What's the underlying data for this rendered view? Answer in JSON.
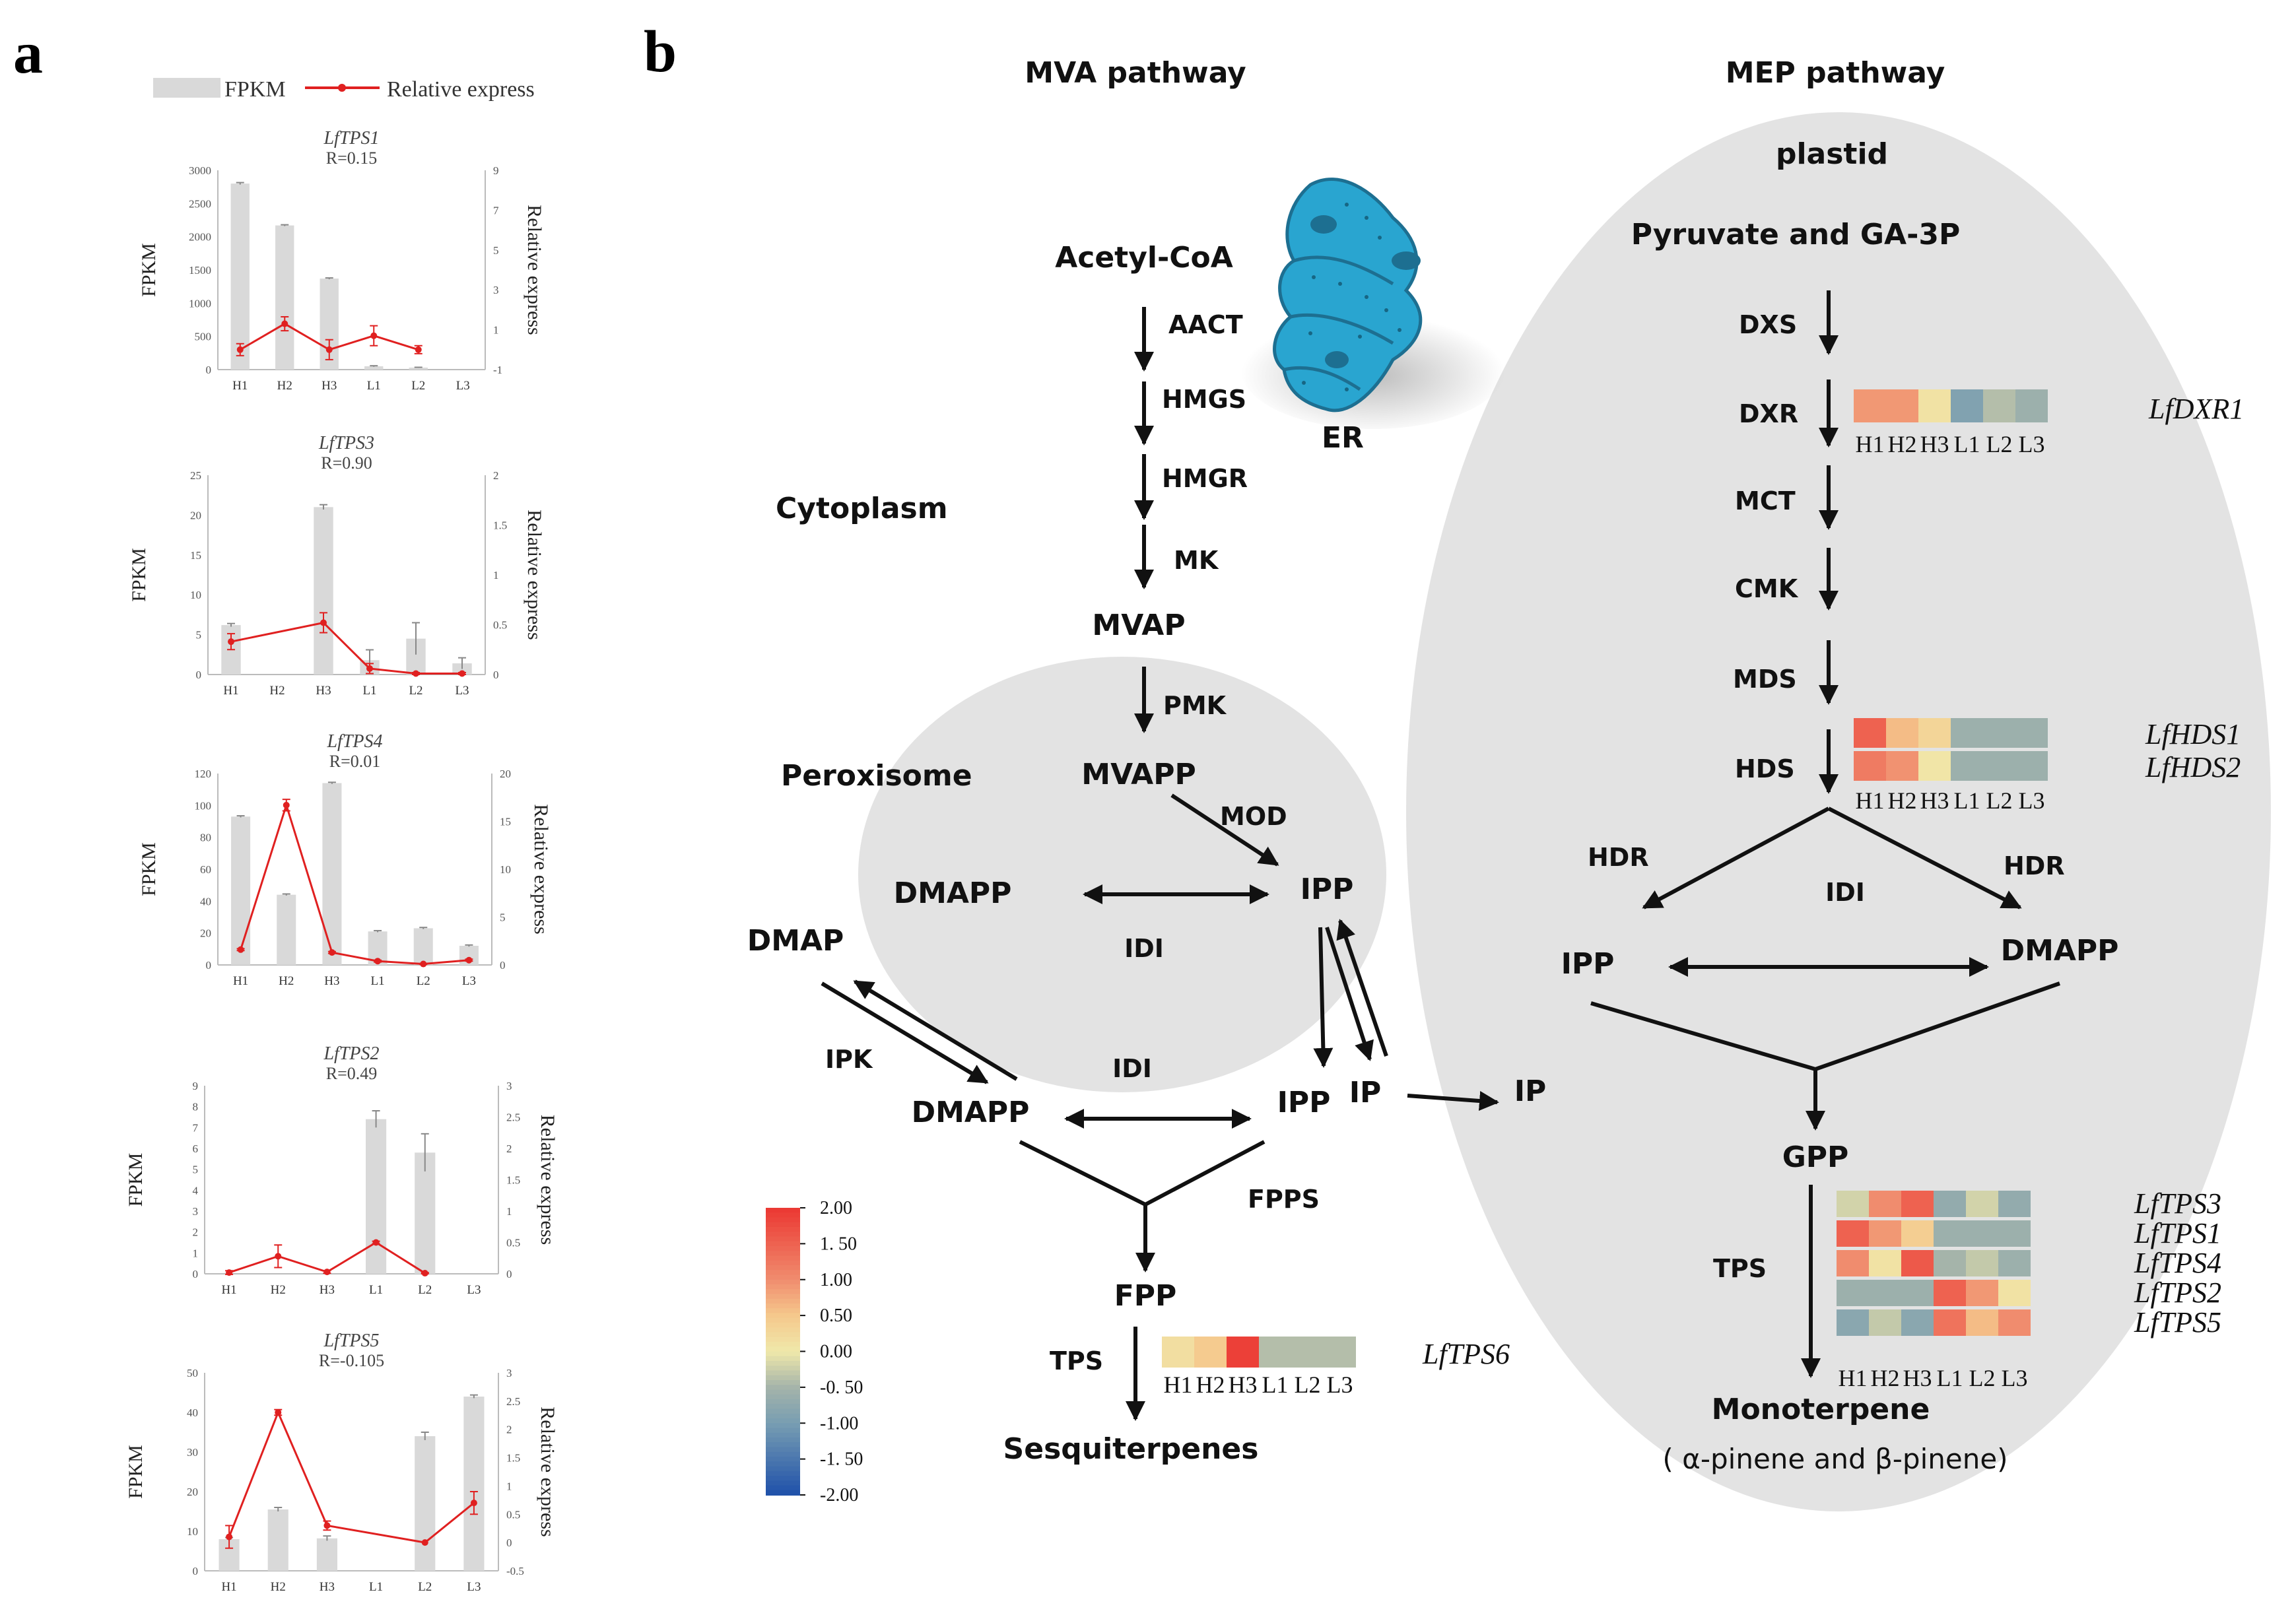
{
  "panel_a": {
    "label": "a",
    "legend": {
      "bar_label": "FPKM",
      "line_label": "Relative express"
    },
    "y_left_label": "FPKM",
    "y_right_label": "Relative express",
    "colors": {
      "bar": "#d9d9d9",
      "line": "#e02020"
    }
  },
  "chart_data": [
    {
      "type": "bar",
      "title": "LfTPS1",
      "subtitle": "R=0.15",
      "categories": [
        "H1",
        "H2",
        "H3",
        "L1",
        "L2",
        "L3"
      ],
      "series": [
        {
          "name": "FPKM",
          "axis": "left",
          "values": [
            2800,
            2170,
            1370,
            50,
            30,
            0
          ],
          "errors": [
            15,
            10,
            10,
            8,
            5,
            0
          ]
        },
        {
          "name": "Relative express",
          "axis": "right",
          "type": "line",
          "values": [
            0,
            1.3,
            0,
            0.7,
            0,
            null
          ],
          "errors": [
            0.3,
            0.35,
            0.5,
            0.5,
            0.2,
            null
          ]
        }
      ],
      "y_left": {
        "min": 0,
        "max": 3000,
        "ticks": [
          0,
          500,
          1000,
          1500,
          2000,
          2500,
          3000
        ]
      },
      "y_right": {
        "min": -1,
        "max": 9,
        "ticks": [
          -1,
          1,
          3,
          5,
          7,
          9
        ]
      }
    },
    {
      "type": "bar",
      "title": "LfTPS3",
      "subtitle": "R=0.90",
      "categories": [
        "H1",
        "H2",
        "H3",
        "L1",
        "L2",
        "L3"
      ],
      "series": [
        {
          "name": "FPKM",
          "axis": "left",
          "values": [
            6.2,
            0,
            21,
            1.8,
            4.5,
            1.4
          ],
          "errors": [
            0.2,
            0,
            0.3,
            1.3,
            2,
            0.7
          ]
        },
        {
          "name": "Relative express",
          "axis": "right",
          "type": "line",
          "values": [
            0.33,
            null,
            0.52,
            0.06,
            0.01,
            0.01
          ],
          "errors": [
            0.08,
            null,
            0.1,
            0.05,
            0.01,
            0.01
          ]
        }
      ],
      "y_left": {
        "min": 0,
        "max": 25,
        "ticks": [
          0,
          5,
          10,
          15,
          20,
          25
        ]
      },
      "y_right": {
        "min": 0,
        "max": 2,
        "ticks": [
          0,
          0.5,
          1,
          1.5,
          2
        ]
      }
    },
    {
      "type": "bar",
      "title": "LfTPS4",
      "subtitle": "R=0.01",
      "categories": [
        "H1",
        "H2",
        "H3",
        "L1",
        "L2",
        "L3"
      ],
      "series": [
        {
          "name": "FPKM",
          "axis": "left",
          "values": [
            93,
            44,
            114,
            21,
            23,
            12
          ],
          "errors": [
            0.5,
            0.5,
            0.5,
            0.5,
            0.5,
            0.5
          ]
        },
        {
          "name": "Relative express",
          "axis": "right",
          "type": "line",
          "values": [
            1.6,
            16.7,
            1.3,
            0.4,
            0.1,
            0.5
          ],
          "errors": [
            0.1,
            0.6,
            0.1,
            0.1,
            0.05,
            0.1
          ]
        }
      ],
      "y_left": {
        "min": 0,
        "max": 120,
        "ticks": [
          0,
          20,
          40,
          60,
          80,
          100,
          120
        ]
      },
      "y_right": {
        "min": 0,
        "max": 20,
        "ticks": [
          0,
          5,
          10,
          15,
          20
        ]
      }
    },
    {
      "type": "bar",
      "title": "LfTPS2",
      "subtitle": "R=0.49",
      "categories": [
        "H1",
        "H2",
        "H3",
        "L1",
        "L2",
        "L3"
      ],
      "series": [
        {
          "name": "FPKM",
          "axis": "left",
          "values": [
            0,
            0,
            0,
            7.4,
            5.8,
            0
          ],
          "errors": [
            0,
            0,
            0,
            0.4,
            0.9,
            0
          ]
        },
        {
          "name": "Relative express",
          "axis": "right",
          "type": "line",
          "values": [
            0.02,
            0.28,
            0.03,
            0.5,
            0.01,
            null
          ],
          "errors": [
            0.03,
            0.18,
            0.02,
            0.02,
            0.01,
            null
          ]
        }
      ],
      "y_left": {
        "min": 0,
        "max": 9,
        "ticks": [
          0,
          1,
          2,
          3,
          4,
          5,
          6,
          7,
          8,
          9
        ]
      },
      "y_right": {
        "min": 0,
        "max": 3,
        "ticks": [
          0,
          0.5,
          1,
          1.5,
          2,
          2.5,
          3
        ]
      }
    },
    {
      "type": "bar",
      "title": "LfTPS5",
      "subtitle": "R=-0.105",
      "categories": [
        "H1",
        "H2",
        "H3",
        "L1",
        "L2",
        "L3"
      ],
      "series": [
        {
          "name": "FPKM",
          "axis": "left",
          "values": [
            8,
            15.5,
            8.2,
            0,
            34,
            44
          ],
          "errors": [
            0.4,
            0.5,
            0.6,
            0,
            1,
            0.4
          ]
        },
        {
          "name": "Relative express",
          "axis": "right",
          "type": "line",
          "values": [
            0.1,
            2.3,
            0.3,
            null,
            0,
            0.7
          ],
          "errors": [
            0.2,
            0.05,
            0.08,
            null,
            0,
            0.2
          ]
        }
      ],
      "y_left": {
        "min": 0,
        "max": 50,
        "ticks": [
          0,
          10,
          20,
          30,
          40,
          50
        ]
      },
      "y_right": {
        "min": -0.5,
        "max": 3,
        "ticks": [
          -0.5,
          0,
          0.5,
          1,
          1.5,
          2,
          2.5,
          3
        ]
      }
    }
  ],
  "panel_b": {
    "label": "b",
    "headers": {
      "mva": "MVA pathway",
      "mep": "MEP pathway"
    },
    "compartments": {
      "plastid": "plastid",
      "cytoplasm": "Cytoplasm",
      "peroxisome": "Peroxisome",
      "er": "ER"
    },
    "mva_nodes": {
      "acetyl": "Acetyl-CoA",
      "mvap": "MVAP",
      "mvapp": "MVAPP",
      "dmapp_perox": "DMAPP",
      "ipp_perox": "IPP",
      "dmap": "DMAP",
      "dmapp_cyto": "DMAPP",
      "ipp_cyto": "IPP",
      "ip_cyto": "IP",
      "ip_out": "IP",
      "fpp": "FPP",
      "sesq": "Sesquiterpenes"
    },
    "mva_enzymes": {
      "aact": "AACT",
      "hmgs": "HMGS",
      "hmgr": "HMGR",
      "mk": "MK",
      "pmk": "PMK",
      "mod": "MOD",
      "idi_perox": "IDI",
      "ipk": "IPK",
      "idi_cyto": "IDI",
      "fpps": "FPPS",
      "tps": "TPS"
    },
    "mep_nodes": {
      "pyruvate": "Pyruvate and GA-3P",
      "ipp": "IPP",
      "dmapp": "DMAPP",
      "gpp": "GPP",
      "mono": "Monoterpene",
      "mono_sub": "( α-pinene and   β-pinene)"
    },
    "mep_enzymes": {
      "dxs": "DXS",
      "dxr": "DXR",
      "mct": "MCT",
      "cmk": "CMK",
      "mds": "MDS",
      "hds": "HDS",
      "hdr_left": "HDR",
      "hdr_right": "HDR",
      "idi": "IDI",
      "tps": "TPS"
    },
    "colorbar": {
      "labels": [
        "2.00",
        "1. 50",
        "1.00",
        "0.50",
        "0.00",
        "-0. 50",
        "-1.00",
        "-1. 50",
        "-2.00"
      ]
    },
    "heatmaps": {
      "columns": [
        "H1",
        "H2",
        "H3",
        "L1",
        "L2",
        "L3"
      ],
      "dxr": {
        "genes": [
          "LfDXR1"
        ],
        "values": [
          [
            0.9,
            0.9,
            0.1,
            -0.9,
            -0.4,
            -0.6
          ]
        ]
      },
      "hds": {
        "genes": [
          "LfHDS1",
          "LfHDS2"
        ],
        "values": [
          [
            1.5,
            0.6,
            0.3,
            -0.6,
            -0.6,
            -0.6
          ],
          [
            1.2,
            0.95,
            0.05,
            -0.6,
            -0.6,
            -0.6
          ]
        ]
      },
      "tps_mono": {
        "genes": [
          "LfTPS3",
          "LfTPS1",
          "LfTPS4",
          "LfTPS2",
          "LfTPS5"
        ],
        "values": [
          [
            -0.2,
            1.0,
            1.5,
            -0.7,
            -0.2,
            -0.7
          ],
          [
            1.5,
            0.9,
            0.4,
            -0.6,
            -0.6,
            -0.6
          ],
          [
            1.0,
            0.1,
            1.6,
            -0.5,
            -0.3,
            -0.6
          ],
          [
            -0.6,
            -0.6,
            -0.6,
            1.5,
            0.9,
            0.1
          ],
          [
            -0.8,
            -0.3,
            -0.8,
            1.3,
            0.6,
            1.0
          ]
        ]
      },
      "tps_sesq": {
        "genes": [
          "LfTPS6"
        ],
        "values": [
          [
            0.15,
            0.45,
            1.9,
            -0.4,
            -0.4,
            -0.4
          ]
        ]
      }
    }
  }
}
